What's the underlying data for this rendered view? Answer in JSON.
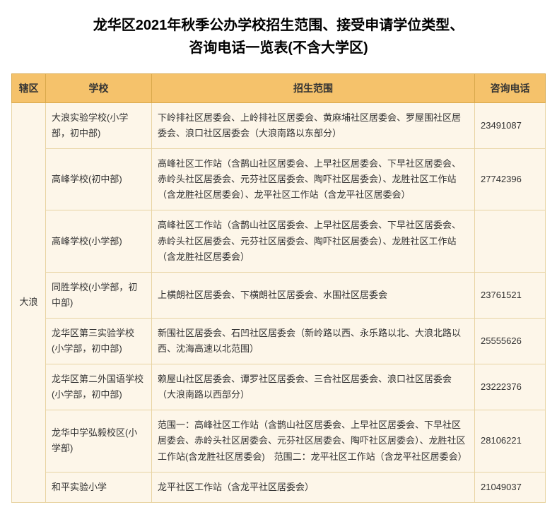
{
  "title_line1": "龙华区2021年秋季公办学校招生范围、接受申请学位类型、",
  "title_line2": "咨询电话一览表(不含大学区)",
  "headers": {
    "district": "辖区",
    "school": "学校",
    "scope": "招生范围",
    "phone": "咨询电话"
  },
  "district_name": "大浪",
  "rows": [
    {
      "school": "大浪实验学校(小学部，初中部)",
      "scope": "下岭排社区居委会、上岭排社区居委会、黄麻埔社区居委会、罗屋围社区居委会、浪口社区居委会（大浪南路以东部分）",
      "phone": "23491087"
    },
    {
      "school": "高峰学校(初中部)",
      "scope": "高峰社区工作站（含鹊山社区居委会、上早社区居委会、下早社区居委会、赤岭头社区居委会、元芬社区居委会、陶吓社区居委会）、龙胜社区工作站（含龙胜社区居委会）、龙平社区工作站（含龙平社区居委会）",
      "phone": "27742396"
    },
    {
      "school": "高峰学校(小学部)",
      "scope": "高峰社区工作站（含鹊山社区居委会、上早社区居委会、下早社区居委会、赤岭头社区居委会、元芬社区居委会、陶吓社区居委会）、龙胜社区工作站（含龙胜社区居委会）",
      "phone": ""
    },
    {
      "school": "同胜学校(小学部，初中部)",
      "scope": "上横朗社区居委会、下横朗社区居委会、水围社区居委会",
      "phone": "23761521"
    },
    {
      "school": "龙华区第三实验学校(小学部，初中部)",
      "scope": "新围社区居委会、石凹社区居委会（新岭路以西、永乐路以北、大浪北路以西、沈海高速以北范围）",
      "phone": "25555626"
    },
    {
      "school": "龙华区第二外国语学校(小学部，初中部)",
      "scope": "赖屋山社区居委会、谭罗社区居委会、三合社区居委会、浪口社区居委会（大浪南路以西部分）",
      "phone": "23222376"
    },
    {
      "school": "龙华中学弘毅校区(小学部)",
      "scope": "范围一：高峰社区工作站（含鹊山社区居委会、上早社区居委会、下早社区居委会、赤岭头社区居委会、元芬社区居委会、陶吓社区居委会）、龙胜社区工作站(含龙胜社区居委会)　范围二：龙平社区工作站（含龙平社区居委会）",
      "phone": "28106221"
    },
    {
      "school": "和平实验小学",
      "scope": "龙平社区工作站（含龙平社区居委会）",
      "phone": "21049037"
    }
  ],
  "colors": {
    "header_bg": "#f5c26b",
    "header_border": "#d9a94c",
    "cell_bg": "#fdf6e9",
    "cell_border": "#e8d4a3",
    "text": "#333333"
  }
}
